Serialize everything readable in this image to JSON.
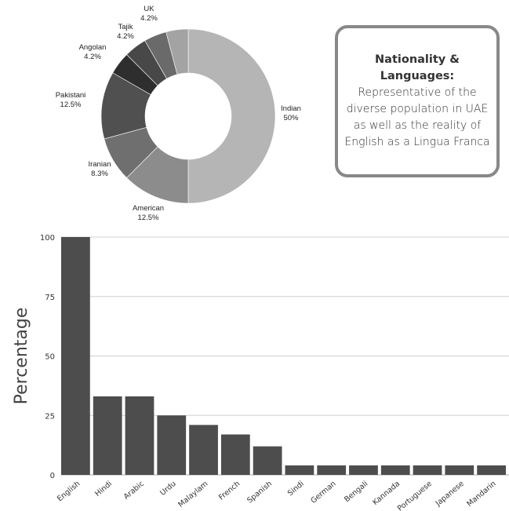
{
  "callout": {
    "title": "Nationality & Languages:",
    "body": "Representative of the diverse population in UAE as well as the reality of English as a Lingua Franca"
  },
  "chart_data": [
    {
      "type": "pie",
      "donut": true,
      "title": "",
      "slices": [
        {
          "label": "Indian",
          "value_label": "50%",
          "value": 50,
          "color": "#b5b5b5"
        },
        {
          "label": "American",
          "value_label": "12.5%",
          "value": 12.5,
          "color": "#8c8c8c"
        },
        {
          "label": "Iranian",
          "value_label": "8.3%",
          "value": 8.3,
          "color": "#6f6f6f"
        },
        {
          "label": "Pakistani",
          "value_label": "12.5%",
          "value": 12.5,
          "color": "#505050"
        },
        {
          "label": "Angolan",
          "value_label": "4.2%",
          "value": 4.2,
          "color": "#2e2e2e"
        },
        {
          "label": "Tajik",
          "value_label": "4.2%",
          "value": 4.2,
          "color": "#484848"
        },
        {
          "label": "UK",
          "value_label": "4.2%",
          "value": 4.2,
          "color": "#6a6a6a"
        },
        {
          "label": "",
          "value_label": "",
          "value": 4.1,
          "color": "#a3a3a3"
        }
      ]
    },
    {
      "type": "bar",
      "title": "",
      "xlabel": "",
      "ylabel": "Percentage",
      "ylim": [
        0,
        100
      ],
      "yticks": [
        0,
        25,
        50,
        75,
        100
      ],
      "grid": true,
      "bar_color": "#4d4d4d",
      "categories": [
        "English",
        "Hindi",
        "Arabic",
        "Urdu",
        "Malaylam",
        "French",
        "Spanish",
        "Sindi",
        "German",
        "Bengali",
        "Kannada",
        "Portuguese",
        "Japanese",
        "Mandarin"
      ],
      "values": [
        100,
        33,
        33,
        25,
        21,
        17,
        12,
        4,
        4,
        4,
        4,
        4,
        4,
        4
      ]
    }
  ]
}
